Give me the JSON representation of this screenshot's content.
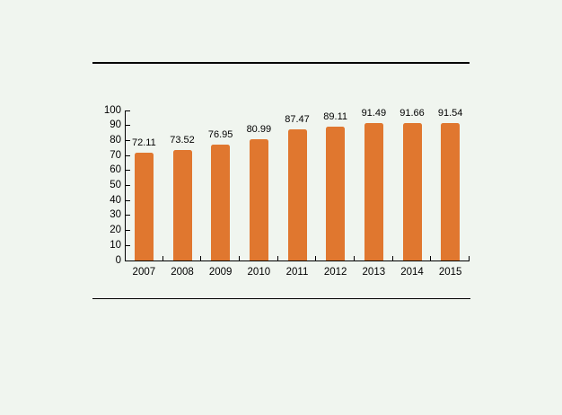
{
  "page": {
    "background_color": "#F0F5EF"
  },
  "rules": {
    "color": "#000000"
  },
  "chart_data": {
    "type": "bar",
    "categories": [
      "2007",
      "2008",
      "2009",
      "2010",
      "2011",
      "2012",
      "2013",
      "2014",
      "2015"
    ],
    "values": [
      72.11,
      73.52,
      76.95,
      80.99,
      87.47,
      89.11,
      91.49,
      91.66,
      91.54
    ],
    "data_labels": [
      "72.11",
      "73.52",
      "76.95",
      "80.99",
      "87.47",
      "89.11",
      "91.49",
      "91.66",
      "91.54"
    ],
    "title": "",
    "xlabel": "",
    "ylabel": "",
    "ylim": [
      0,
      100
    ],
    "ytick_step": 10,
    "ytick_labels": [
      "0",
      "10",
      "20",
      "30",
      "40",
      "50",
      "60",
      "70",
      "80",
      "90",
      "100"
    ],
    "grid": false,
    "legend": false,
    "bar_color": "#E0772F",
    "axis_color": "#000000",
    "text_color": "#000000"
  }
}
